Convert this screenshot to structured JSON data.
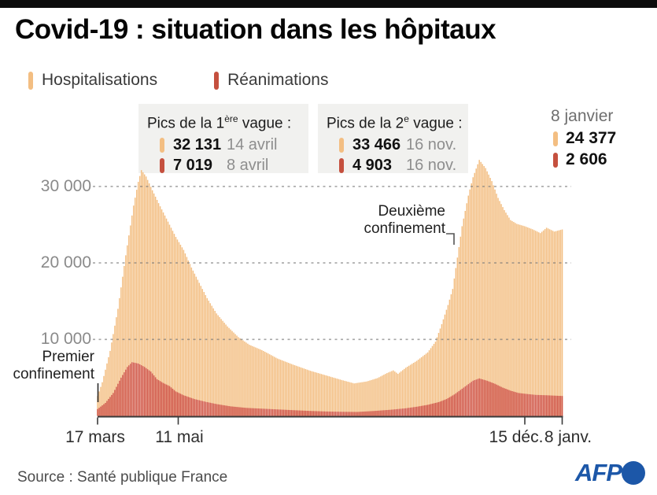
{
  "title": "Covid-19 : situation dans les hôpitaux",
  "legend": {
    "items": [
      {
        "label": "Hospitalisations",
        "color": "#f3be82"
      },
      {
        "label": "Réanimations",
        "color": "#c5503e"
      }
    ]
  },
  "annotations": {
    "wave1": {
      "title_pre": "Pics de la 1",
      "title_sup": "ère",
      "title_post": " vague :",
      "rows": [
        {
          "series": "Hospitalisations",
          "color": "#f3be82",
          "value": "32 131",
          "date": "14 avril"
        },
        {
          "series": "Réanimations",
          "color": "#c5503e",
          "value": "7 019",
          "date": "8 avril"
        }
      ]
    },
    "wave2": {
      "title_pre": "Pics de la 2",
      "title_sup": "e",
      "title_post": " vague :",
      "rows": [
        {
          "series": "Hospitalisations",
          "color": "#f3be82",
          "value": "33 466",
          "date": "16 nov."
        },
        {
          "series": "Réanimations",
          "color": "#c5503e",
          "value": "4 903",
          "date": "16 nov."
        }
      ]
    },
    "latest": {
      "title": "8 janvier",
      "rows": [
        {
          "series": "Hospitalisations",
          "color": "#f3be82",
          "value": "24 377"
        },
        {
          "series": "Réanimations",
          "color": "#c5503e",
          "value": "2 606"
        }
      ]
    },
    "lockdown1": {
      "line1": "Premier",
      "line2": "confinement"
    },
    "lockdown2": {
      "line1": "Deuxième",
      "line2": "confinement"
    }
  },
  "chart_data": {
    "type": "bar",
    "title": "Covid-19 : situation dans les hôpitaux",
    "ylabel": "",
    "xlabel": "",
    "ylim": [
      0,
      35000
    ],
    "grid": "dashed horizontal",
    "legend_position": "top-left",
    "day0": "17 mars 2020",
    "total_days": 297,
    "y_axis": {
      "ticks": [
        {
          "value": 30000,
          "label": "30 000"
        },
        {
          "value": 20000,
          "label": "20 000"
        },
        {
          "value": 10000,
          "label": "10 000"
        }
      ]
    },
    "x_axis": {
      "tick_days": [
        0,
        55,
        273,
        297
      ],
      "tick_labels": [
        "17 mars",
        "11 mai",
        "15 déc.",
        "8 janv."
      ]
    },
    "series": [
      {
        "name": "Hospitalisations",
        "color": "#f3be82",
        "peak_wave1": {
          "date": "14 avril",
          "value": 32131
        },
        "peak_wave2": {
          "date": "16 nov.",
          "value": 33466
        },
        "last": {
          "date": "8 janvier",
          "value": 24377
        },
        "points": [
          [
            0,
            2600
          ],
          [
            3,
            4400
          ],
          [
            8,
            8500
          ],
          [
            13,
            14000
          ],
          [
            18,
            21000
          ],
          [
            23,
            27500
          ],
          [
            26,
            30600
          ],
          [
            28,
            32131
          ],
          [
            31,
            31300
          ],
          [
            35,
            29500
          ],
          [
            40,
            27400
          ],
          [
            45,
            25400
          ],
          [
            50,
            23400
          ],
          [
            55,
            21700
          ],
          [
            60,
            19400
          ],
          [
            65,
            17400
          ],
          [
            70,
            15400
          ],
          [
            76,
            13400
          ],
          [
            83,
            11700
          ],
          [
            90,
            10300
          ],
          [
            97,
            9300
          ],
          [
            105,
            8600
          ],
          [
            115,
            7500
          ],
          [
            125,
            6700
          ],
          [
            136,
            5900
          ],
          [
            146,
            5300
          ],
          [
            156,
            4700
          ],
          [
            164,
            4250
          ],
          [
            172,
            4500
          ],
          [
            179,
            4950
          ],
          [
            185,
            5600
          ],
          [
            189,
            5950
          ],
          [
            192,
            5500
          ],
          [
            197,
            6300
          ],
          [
            204,
            7200
          ],
          [
            211,
            8300
          ],
          [
            216,
            9700
          ],
          [
            220,
            12000
          ],
          [
            224,
            14500
          ],
          [
            227,
            16600
          ],
          [
            230,
            20700
          ],
          [
            233,
            24800
          ],
          [
            237,
            28800
          ],
          [
            240,
            31200
          ],
          [
            244,
            33466
          ],
          [
            248,
            32400
          ],
          [
            252,
            30700
          ],
          [
            256,
            28500
          ],
          [
            260,
            26900
          ],
          [
            264,
            25600
          ],
          [
            268,
            25100
          ],
          [
            273,
            24800
          ],
          [
            278,
            24400
          ],
          [
            283,
            23900
          ],
          [
            287,
            24600
          ],
          [
            292,
            24100
          ],
          [
            297,
            24377
          ]
        ]
      },
      {
        "name": "Réanimations",
        "color": "#d05546",
        "peak_wave1": {
          "date": "8 avril",
          "value": 7019
        },
        "peak_wave2": {
          "date": "16 nov.",
          "value": 4903
        },
        "last": {
          "date": "8 janvier",
          "value": 2606
        },
        "points": [
          [
            0,
            900
          ],
          [
            5,
            1700
          ],
          [
            10,
            3000
          ],
          [
            15,
            5000
          ],
          [
            19,
            6400
          ],
          [
            22,
            7019
          ],
          [
            26,
            6850
          ],
          [
            30,
            6400
          ],
          [
            34,
            5800
          ],
          [
            38,
            4800
          ],
          [
            42,
            4300
          ],
          [
            46,
            3900
          ],
          [
            50,
            3200
          ],
          [
            55,
            2700
          ],
          [
            62,
            2200
          ],
          [
            69,
            1850
          ],
          [
            76,
            1550
          ],
          [
            85,
            1250
          ],
          [
            95,
            1050
          ],
          [
            105,
            950
          ],
          [
            115,
            850
          ],
          [
            125,
            750
          ],
          [
            136,
            650
          ],
          [
            146,
            580
          ],
          [
            156,
            540
          ],
          [
            166,
            520
          ],
          [
            177,
            650
          ],
          [
            187,
            800
          ],
          [
            197,
            1000
          ],
          [
            204,
            1200
          ],
          [
            211,
            1450
          ],
          [
            218,
            1800
          ],
          [
            223,
            2200
          ],
          [
            228,
            2800
          ],
          [
            232,
            3400
          ],
          [
            236,
            4000
          ],
          [
            240,
            4600
          ],
          [
            244,
            4903
          ],
          [
            249,
            4600
          ],
          [
            254,
            4200
          ],
          [
            259,
            3700
          ],
          [
            264,
            3300
          ],
          [
            269,
            3000
          ],
          [
            273,
            2900
          ],
          [
            280,
            2750
          ],
          [
            287,
            2700
          ],
          [
            292,
            2650
          ],
          [
            297,
            2606
          ]
        ]
      }
    ]
  },
  "footer": {
    "source": "Source : Santé publique France",
    "logo": "AFP"
  }
}
